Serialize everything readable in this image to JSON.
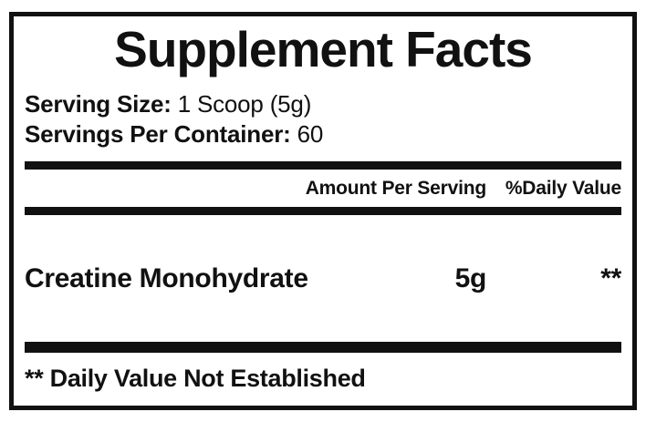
{
  "panel": {
    "title": "Supplement Facts",
    "serving_size_label": "Serving Size:",
    "serving_size_value": "1 Scoop (5g)",
    "servings_per_container_label": "Servings Per Container:",
    "servings_per_container_value": "60",
    "columns": {
      "amount_header": "Amount Per Serving",
      "daily_value_header": "%Daily Value"
    },
    "ingredients": [
      {
        "name": "Creatine Monohydrate",
        "amount": "5g",
        "daily_value": "**"
      }
    ],
    "footnote": "** Daily Value Not Established"
  },
  "colors": {
    "text": "#111111",
    "rule": "#111111",
    "background": "#ffffff"
  }
}
